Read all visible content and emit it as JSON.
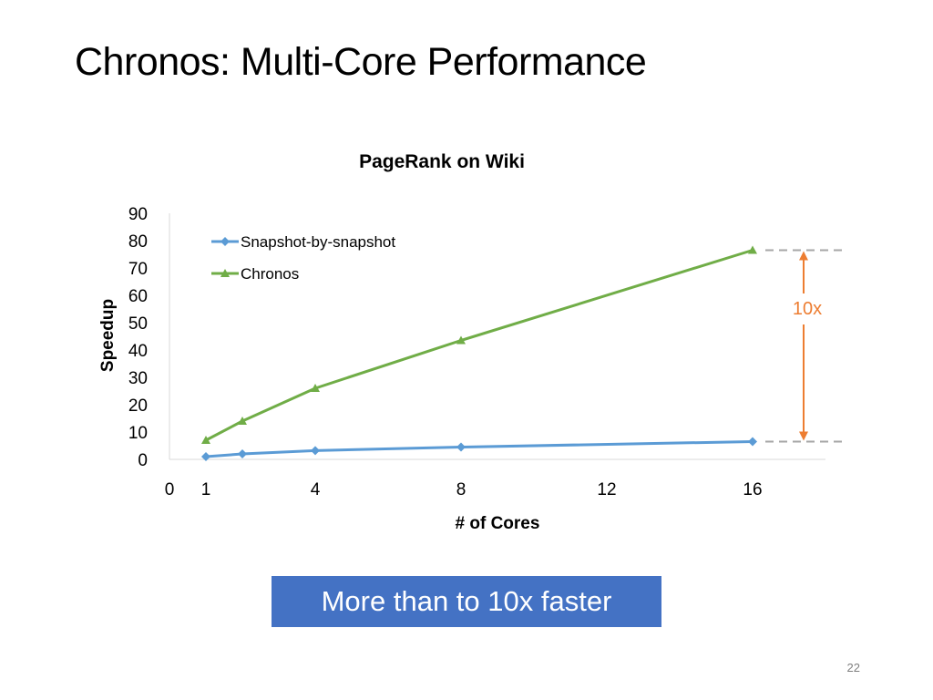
{
  "slide": {
    "title": "Chronos: Multi-Core Performance",
    "callout": "More than to 10x faster",
    "page_number": "22"
  },
  "chart_data": {
    "type": "line",
    "title": "PageRank on Wiki",
    "xlabel": "# of Cores",
    "ylabel": "Speedup",
    "xticks": [
      0,
      1,
      4,
      8,
      12,
      16
    ],
    "yticks": [
      0,
      10,
      20,
      30,
      40,
      50,
      60,
      70,
      80,
      90
    ],
    "xlim": [
      0,
      18
    ],
    "ylim": [
      0,
      90
    ],
    "legend_position": "top-left",
    "grid": false,
    "series": [
      {
        "name": "Snapshot-by-snapshot",
        "color": "#5b9bd5",
        "marker": "diamond",
        "x": [
          1,
          2,
          4,
          8,
          16
        ],
        "y": [
          1,
          2,
          3.2,
          4.5,
          6.5
        ]
      },
      {
        "name": "Chronos",
        "color": "#70ad47",
        "marker": "triangle",
        "x": [
          1,
          2,
          4,
          8,
          16
        ],
        "y": [
          7,
          14,
          26,
          43.5,
          76.5
        ]
      }
    ],
    "annotation": {
      "label": "10x",
      "color": "#ed7d31",
      "from": 6.5,
      "to": 76.5
    }
  }
}
